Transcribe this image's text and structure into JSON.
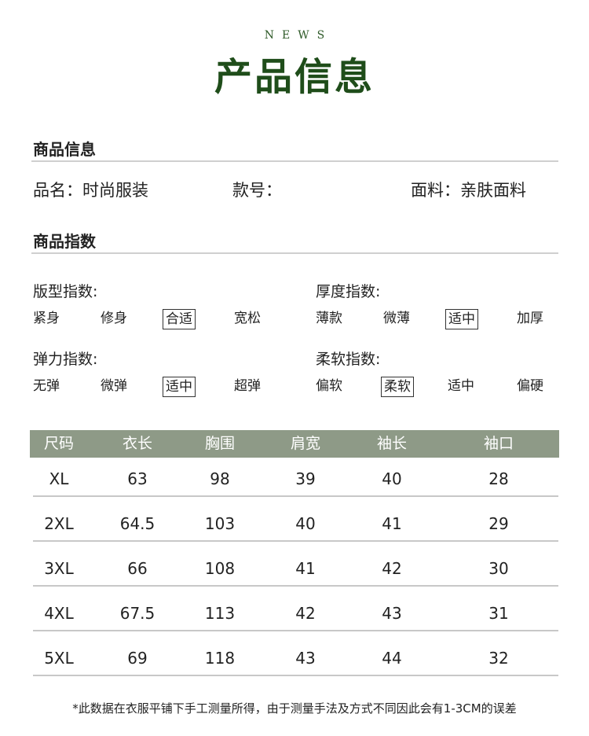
{
  "header": {
    "eyebrow": "NEWS",
    "title": "产品信息"
  },
  "product_info": {
    "heading": "商品信息",
    "name": "品名：时尚服装",
    "style_no": "款号：",
    "fabric": "面料：亲肤面料"
  },
  "indices": {
    "heading": "商品指数",
    "groups": [
      {
        "label": "版型指数:",
        "options": [
          "紧身",
          "修身",
          "合适",
          "宽松"
        ],
        "selected": "合适"
      },
      {
        "label": "厚度指数:",
        "options": [
          "薄款",
          "微薄",
          "适中",
          "加厚"
        ],
        "selected": "适中"
      },
      {
        "label": "弹力指数:",
        "options": [
          "无弹",
          "微弹",
          "适中",
          "超弹"
        ],
        "selected": "适中"
      },
      {
        "label": "柔软指数:",
        "options": [
          "偏软",
          "柔软",
          "适中",
          "偏硬"
        ],
        "selected": "柔软"
      }
    ]
  },
  "size_table": {
    "header_color": "#8e9a87",
    "columns": [
      "尺码",
      "衣长",
      "胸围",
      "肩宽",
      "袖长",
      "袖口"
    ],
    "rows": [
      [
        "XL",
        "63",
        "98",
        "39",
        "40",
        "28"
      ],
      [
        "2XL",
        "64.5",
        "103",
        "40",
        "41",
        "29"
      ],
      [
        "3XL",
        "66",
        "108",
        "41",
        "42",
        "30"
      ],
      [
        "4XL",
        "67.5",
        "113",
        "42",
        "43",
        "31"
      ],
      [
        "5XL",
        "69",
        "118",
        "43",
        "44",
        "32"
      ]
    ]
  },
  "footnote": "*此数据在衣服平铺下手工测量所得，由于测量手法及方式不同因此会有1-3CM的误差",
  "colors": {
    "title": "#1f4d1a"
  }
}
